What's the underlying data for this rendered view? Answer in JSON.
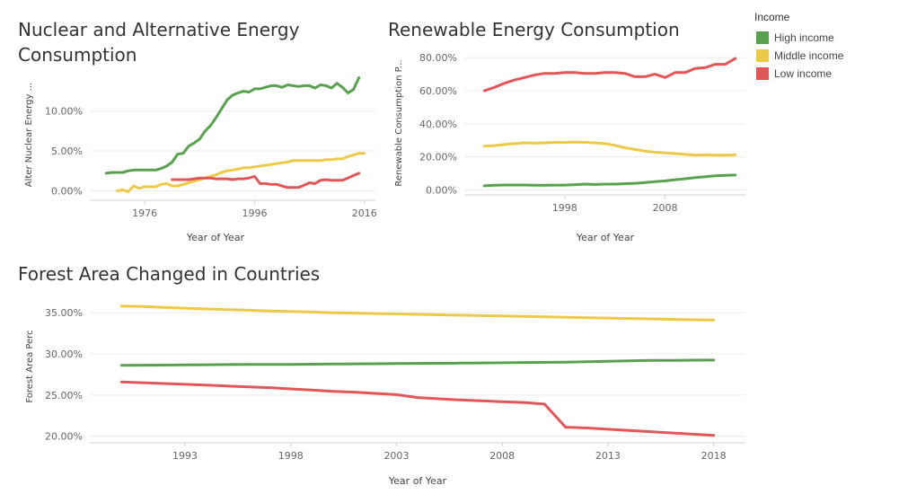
{
  "legend": {
    "title": "Income",
    "items": [
      {
        "label": "High income",
        "color": "#59a14f"
      },
      {
        "label": "Middle income",
        "color": "#edc948"
      },
      {
        "label": "Low income",
        "color": "#e15759"
      }
    ]
  },
  "chart_data": [
    {
      "id": "nuclear",
      "type": "line",
      "title_lines": [
        "Nuclear and Alternative Energy",
        "Consumption"
      ],
      "xlabel": "Year of Year",
      "ylabel": "Alter Nuclear Energy ...",
      "xlim": [
        1966,
        2018
      ],
      "ylim": [
        -1.2,
        15.5
      ],
      "xticks": [
        1976,
        1996,
        2016
      ],
      "yticks": [
        {
          "v": 0,
          "label": "0.00%"
        },
        {
          "v": 5,
          "label": "5.00%"
        },
        {
          "v": 10,
          "label": "10.00%"
        }
      ],
      "gridlines": true,
      "series": [
        {
          "name": "High income",
          "color": "#59a14f",
          "x": [
            1969,
            1970,
            1971,
            1972,
            1973,
            1974,
            1975,
            1976,
            1977,
            1978,
            1979,
            1980,
            1981,
            1982,
            1983,
            1984,
            1985,
            1986,
            1987,
            1988,
            1989,
            1990,
            1991,
            1992,
            1993,
            1994,
            1995,
            1996,
            1997,
            1998,
            1999,
            2000,
            2001,
            2002,
            2003,
            2004,
            2005,
            2006,
            2007,
            2008,
            2009,
            2010,
            2011,
            2012,
            2013,
            2014,
            2015
          ],
          "y": [
            2.2,
            2.3,
            2.3,
            2.3,
            2.5,
            2.6,
            2.6,
            2.6,
            2.6,
            2.6,
            2.8,
            3.1,
            3.6,
            4.6,
            4.7,
            5.6,
            6.0,
            6.5,
            7.5,
            8.2,
            9.2,
            10.3,
            11.4,
            12.0,
            12.3,
            12.5,
            12.4,
            12.8,
            12.8,
            13.0,
            13.2,
            13.2,
            13.0,
            13.3,
            13.2,
            13.1,
            13.2,
            13.2,
            12.9,
            13.3,
            13.2,
            12.9,
            13.5,
            13.0,
            12.3,
            12.7,
            14.2
          ]
        },
        {
          "name": "Middle income",
          "color": "#edc948",
          "x": [
            1971,
            1972,
            1973,
            1974,
            1975,
            1976,
            1977,
            1978,
            1979,
            1980,
            1981,
            1982,
            1983,
            1984,
            1985,
            1986,
            1987,
            1988,
            1989,
            1990,
            1991,
            1992,
            1993,
            1994,
            1995,
            1996,
            1997,
            1998,
            1999,
            2000,
            2001,
            2002,
            2003,
            2004,
            2005,
            2006,
            2007,
            2008,
            2009,
            2010,
            2011,
            2012,
            2013,
            2014,
            2015,
            2016
          ],
          "y": [
            0.0,
            0.1,
            -0.1,
            0.6,
            0.3,
            0.5,
            0.5,
            0.5,
            0.8,
            0.9,
            0.6,
            0.6,
            0.8,
            1.0,
            1.2,
            1.4,
            1.6,
            1.8,
            2.0,
            2.3,
            2.5,
            2.6,
            2.7,
            2.9,
            2.9,
            3.0,
            3.1,
            3.2,
            3.3,
            3.4,
            3.5,
            3.6,
            3.8,
            3.8,
            3.8,
            3.8,
            3.8,
            3.8,
            3.9,
            3.9,
            4.0,
            4.0,
            4.3,
            4.5,
            4.7,
            4.7
          ]
        },
        {
          "name": "Low income",
          "color": "#e15759",
          "x": [
            1981,
            1982,
            1983,
            1984,
            1985,
            1986,
            1987,
            1988,
            1989,
            1990,
            1991,
            1992,
            1993,
            1994,
            1995,
            1996,
            1997,
            1998,
            1999,
            2000,
            2001,
            2002,
            2003,
            2004,
            2005,
            2006,
            2007,
            2008,
            2009,
            2010,
            2011,
            2012,
            2013,
            2014,
            2015
          ],
          "y": [
            1.4,
            1.4,
            1.4,
            1.4,
            1.5,
            1.6,
            1.6,
            1.6,
            1.5,
            1.5,
            1.5,
            1.4,
            1.5,
            1.5,
            1.6,
            1.8,
            0.9,
            0.9,
            0.8,
            0.8,
            0.6,
            0.4,
            0.4,
            0.4,
            0.7,
            1.0,
            0.9,
            1.3,
            1.4,
            1.3,
            1.3,
            1.3,
            1.6,
            1.9,
            2.2
          ]
        }
      ]
    },
    {
      "id": "renewable",
      "type": "line",
      "title_lines": [
        "Renewable Energy Consumption"
      ],
      "xlabel": "Year of Year",
      "ylabel": "Renewable Consumption P...",
      "xlim": [
        1988,
        2016
      ],
      "ylim": [
        -3,
        85
      ],
      "xticks": [
        1998,
        2008
      ],
      "yticks": [
        {
          "v": 0,
          "label": "0.00%"
        },
        {
          "v": 20,
          "label": "20.00%"
        },
        {
          "v": 40,
          "label": "40.00%"
        },
        {
          "v": 60,
          "label": "60.00%"
        },
        {
          "v": 80,
          "label": "80.00%"
        }
      ],
      "gridlines": true,
      "series": [
        {
          "name": "High income",
          "color": "#59a14f",
          "x": [
            1990,
            1991,
            1992,
            1993,
            1994,
            1995,
            1996,
            1997,
            1998,
            1999,
            2000,
            2001,
            2002,
            2003,
            2004,
            2005,
            2006,
            2007,
            2008,
            2009,
            2010,
            2011,
            2012,
            2013,
            2014,
            2015
          ],
          "y": [
            2.5,
            2.8,
            3.0,
            3.0,
            3.0,
            2.8,
            2.8,
            2.9,
            2.9,
            3.2,
            3.5,
            3.3,
            3.5,
            3.5,
            3.8,
            4.0,
            4.5,
            5.0,
            5.5,
            6.2,
            6.8,
            7.5,
            8.0,
            8.5,
            8.8,
            9.0
          ]
        },
        {
          "name": "Middle income",
          "color": "#edc948",
          "x": [
            1990,
            1991,
            1992,
            1993,
            1994,
            1995,
            1996,
            1997,
            1998,
            1999,
            2000,
            2001,
            2002,
            2003,
            2004,
            2005,
            2006,
            2007,
            2008,
            2009,
            2010,
            2011,
            2012,
            2013,
            2014,
            2015
          ],
          "y": [
            26.5,
            26.8,
            27.5,
            28.0,
            28.5,
            28.3,
            28.5,
            28.8,
            28.7,
            29.0,
            28.8,
            28.5,
            28.0,
            27.0,
            25.5,
            24.5,
            23.5,
            22.8,
            22.5,
            22.0,
            21.5,
            21.0,
            21.2,
            21.0,
            21.0,
            21.2
          ]
        },
        {
          "name": "Low income",
          "color": "#e15759",
          "x": [
            1990,
            1991,
            1992,
            1993,
            1994,
            1995,
            1996,
            1997,
            1998,
            1999,
            2000,
            2001,
            2002,
            2003,
            2004,
            2005,
            2006,
            2007,
            2008,
            2009,
            2010,
            2011,
            2012,
            2013,
            2014,
            2015
          ],
          "y": [
            60.0,
            62.0,
            64.5,
            66.5,
            68.0,
            69.5,
            70.5,
            70.5,
            71.0,
            71.0,
            70.5,
            70.5,
            71.0,
            71.0,
            70.5,
            68.5,
            68.5,
            70.0,
            68.0,
            71.0,
            71.0,
            73.5,
            74.0,
            76.0,
            76.0,
            79.5
          ]
        }
      ]
    },
    {
      "id": "forest",
      "type": "line",
      "title_lines": [
        "Forest Area Changed in Countries"
      ],
      "xlabel": "Year of Year",
      "ylabel": "Forest Area Perc",
      "xlim": [
        1988.5,
        2019.5
      ],
      "ylim": [
        19.2,
        37.2
      ],
      "xticks": [
        1993,
        1998,
        2003,
        2008,
        2013,
        2018
      ],
      "yticks": [
        {
          "v": 20,
          "label": "20.00%"
        },
        {
          "v": 25,
          "label": "25.00%"
        },
        {
          "v": 30,
          "label": "30.00%"
        },
        {
          "v": 35,
          "label": "35.00%"
        }
      ],
      "gridlines": true,
      "series": [
        {
          "name": "High income",
          "color": "#59a14f",
          "x": [
            1990,
            1991,
            1992,
            1993,
            1994,
            1995,
            1996,
            1997,
            1998,
            1999,
            2000,
            2001,
            2002,
            2003,
            2004,
            2005,
            2006,
            2007,
            2008,
            2009,
            2010,
            2011,
            2012,
            2013,
            2014,
            2015,
            2016,
            2017,
            2018
          ],
          "y": [
            28.6,
            28.62,
            28.64,
            28.66,
            28.68,
            28.7,
            28.72,
            28.72,
            28.72,
            28.75,
            28.77,
            28.79,
            28.8,
            28.82,
            28.84,
            28.86,
            28.88,
            28.9,
            28.92,
            28.95,
            28.98,
            29.0,
            29.05,
            29.1,
            29.15,
            29.2,
            29.22,
            29.24,
            29.25
          ]
        },
        {
          "name": "Middle income",
          "color": "#edc948",
          "x": [
            1990,
            1991,
            1992,
            1993,
            1994,
            1995,
            1996,
            1997,
            1998,
            1999,
            2000,
            2001,
            2002,
            2003,
            2004,
            2005,
            2006,
            2007,
            2008,
            2009,
            2010,
            2011,
            2012,
            2013,
            2014,
            2015,
            2016,
            2017,
            2018
          ],
          "y": [
            35.8,
            35.75,
            35.65,
            35.55,
            35.45,
            35.38,
            35.3,
            35.22,
            35.15,
            35.08,
            35.0,
            34.95,
            34.9,
            34.85,
            34.8,
            34.75,
            34.7,
            34.65,
            34.6,
            34.55,
            34.5,
            34.45,
            34.4,
            34.35,
            34.3,
            34.25,
            34.2,
            34.15,
            34.1
          ]
        },
        {
          "name": "Low income",
          "color": "#e15759",
          "x": [
            1990,
            1991,
            1992,
            1993,
            1994,
            1995,
            1996,
            1997,
            1998,
            1999,
            2000,
            2001,
            2002,
            2003,
            2004,
            2005,
            2006,
            2007,
            2008,
            2009,
            2010,
            2011,
            2012,
            2013,
            2014,
            2015,
            2016,
            2017,
            2018
          ],
          "y": [
            26.6,
            26.5,
            26.4,
            26.3,
            26.2,
            26.1,
            26.0,
            25.9,
            25.75,
            25.6,
            25.45,
            25.35,
            25.2,
            25.05,
            24.7,
            24.55,
            24.4,
            24.3,
            24.2,
            24.1,
            23.9,
            21.1,
            21.0,
            20.85,
            20.7,
            20.55,
            20.4,
            20.25,
            20.1
          ]
        }
      ]
    }
  ]
}
